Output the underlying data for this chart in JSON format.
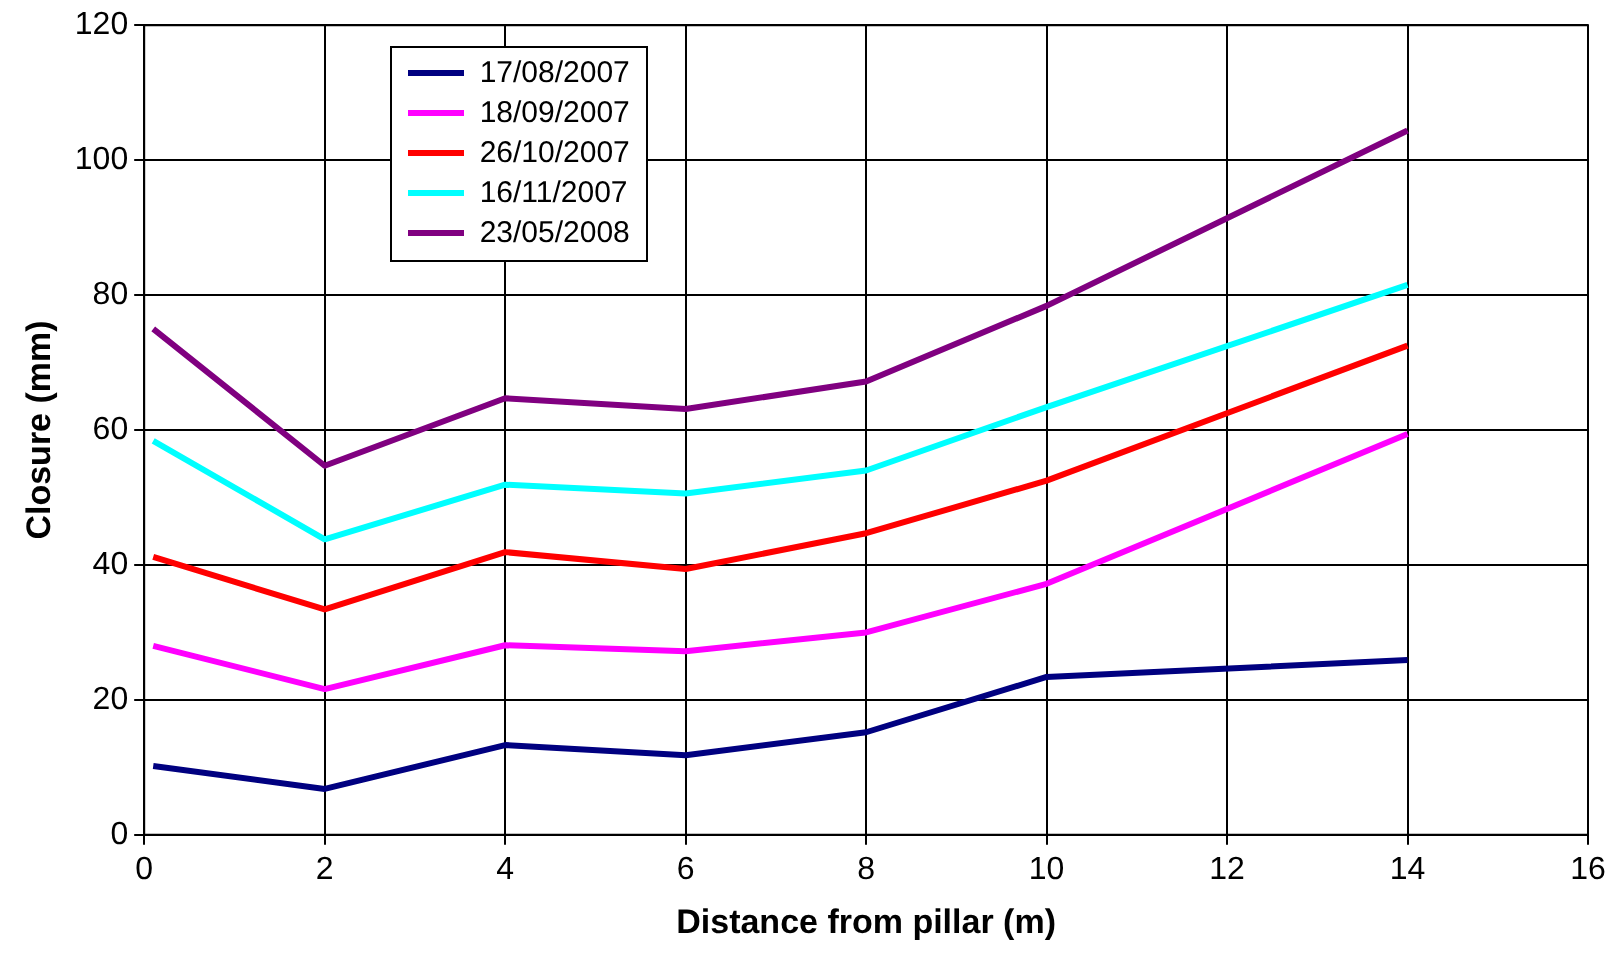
{
  "chart_data": {
    "type": "line",
    "xlabel": "Distance from pillar (m)",
    "ylabel": "Closure (mm)",
    "xlim": [
      0,
      16
    ],
    "xticks": [
      0,
      2,
      4,
      6,
      8,
      10,
      12,
      14,
      16
    ],
    "ylim": [
      0,
      120
    ],
    "yticks": [
      0,
      20,
      40,
      60,
      80,
      100,
      120
    ],
    "grid": true,
    "legend": "top left",
    "marker": "none",
    "line_style": "solid",
    "x": [
      0.1,
      2,
      4,
      6,
      8,
      10,
      14
    ],
    "series": [
      {
        "name": "17/08/2007",
        "color": "#000080",
        "values": [
          10.2,
          6.8,
          13.3,
          11.8,
          15.2,
          23.4,
          25.9
        ]
      },
      {
        "name": "18/09/2007",
        "color": "#ff00ff",
        "values": [
          28,
          21.6,
          28.1,
          27.2,
          30,
          37.2,
          59.4
        ]
      },
      {
        "name": "26/10/2007",
        "color": "#ff0000",
        "values": [
          41.2,
          33.4,
          41.9,
          39.4,
          44.7,
          52.5,
          72.5
        ]
      },
      {
        "name": "16/11/2007",
        "color": "#00ffff",
        "values": [
          58.4,
          43.8,
          51.9,
          50.6,
          54,
          63.4,
          81.5
        ]
      },
      {
        "name": "23/05/2008",
        "color": "#800080",
        "values": [
          75,
          54.7,
          64.7,
          63.1,
          67.2,
          78.4,
          104.4
        ]
      }
    ]
  }
}
